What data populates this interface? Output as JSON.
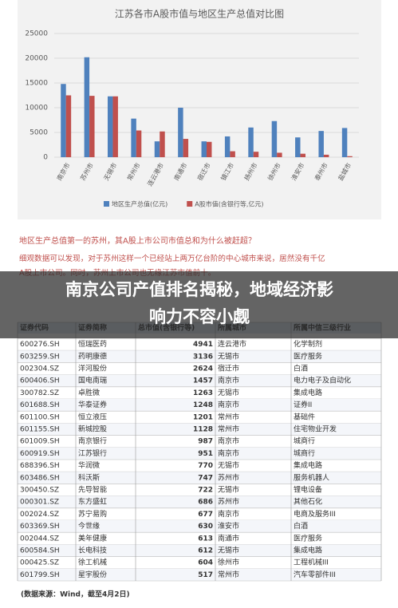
{
  "chart_data": {
    "type": "bar",
    "title": "江苏各市A股市值与地区生产总值对比图",
    "categories": [
      "南京市",
      "苏州市",
      "无锡市",
      "常州市",
      "连云港市",
      "南通市",
      "宿迁市",
      "镇江市",
      "扬州市",
      "徐州市",
      "淮安市",
      "泰州市",
      "盐城市"
    ],
    "series": [
      {
        "name": "地区生产总值(亿元)",
        "color": "#4f81bd",
        "values": [
          14800,
          20200,
          12300,
          7800,
          3200,
          10000,
          3200,
          4200,
          6000,
          7300,
          4000,
          5300,
          5900
        ]
      },
      {
        "name": "A股市值(含银行等,亿元)",
        "color": "#c0504d",
        "values": [
          12500,
          12400,
          12300,
          5400,
          5200,
          3700,
          3100,
          1200,
          1100,
          900,
          700,
          500,
          200
        ]
      }
    ],
    "ylim": [
      0,
      25000
    ],
    "yticks": [
      0,
      5000,
      10000,
      15000,
      20000,
      25000
    ],
    "grid": true,
    "legend": "bottom"
  },
  "article": {
    "heading": "地区生产总值第一的苏州，其A股上市公司市值总和为什么被赶超？",
    "paragraph_lines": [
      "细观数据可以发现，对于苏州这样一个已经站上两万亿台阶的中心城市来说，居然没有千亿",
      "A股上市公司。同时，苏州上市公司也无缘江苏市值前十。"
    ],
    "overlay_title_lines": [
      "南京公司产值排名揭秘，地域经济影",
      "响力不容小觑"
    ],
    "source": "(数据来源：Wind，截至4月2日)"
  },
  "table": {
    "header": [
      "证券代码",
      "证券简称",
      "总市值(含银行等)",
      "所属城市",
      "所属中信三级行业"
    ],
    "rows": [
      [
        "600276.SH",
        "恒瑞医药",
        "4941",
        "连云港市",
        "化学制剂"
      ],
      [
        "603259.SH",
        "药明康德",
        "3136",
        "无锡市",
        "医疗服务"
      ],
      [
        "002304.SZ",
        "洋河股份",
        "2624",
        "宿迁市",
        "白酒"
      ],
      [
        "600406.SH",
        "国电南瑞",
        "1457",
        "南京市",
        "电力电子及自动化"
      ],
      [
        "300782.SZ",
        "卓胜微",
        "1263",
        "无锡市",
        "集成电路"
      ],
      [
        "601688.SH",
        "华泰证券",
        "1248",
        "南京市",
        "证券II"
      ],
      [
        "601100.SH",
        "恒立液压",
        "1201",
        "常州市",
        "基础件"
      ],
      [
        "601155.SH",
        "新城控股",
        "1128",
        "常州市",
        "住宅物业开发"
      ],
      [
        "601009.SH",
        "南京银行",
        "987",
        "南京市",
        "城商行"
      ],
      [
        "600919.SH",
        "江苏银行",
        "951",
        "南京市",
        "城商行"
      ],
      [
        "688396.SH",
        "华润微",
        "770",
        "无锡市",
        "集成电路"
      ],
      [
        "603486.SH",
        "科沃斯",
        "747",
        "苏州市",
        "服务机器人"
      ],
      [
        "300450.SZ",
        "先导智能",
        "722",
        "无锡市",
        "锂电设备"
      ],
      [
        "000301.SZ",
        "东方盛虹",
        "686",
        "苏州市",
        "其他石化"
      ],
      [
        "002024.SZ",
        "苏宁易购",
        "677",
        "南京市",
        "电商及服务III"
      ],
      [
        "603369.SH",
        "今世缘",
        "630",
        "淮安市",
        "白酒"
      ],
      [
        "002044.SZ",
        "美年健康",
        "613",
        "南通市",
        "医疗服务"
      ],
      [
        "600584.SH",
        "长电科技",
        "612",
        "无锡市",
        "集成电路"
      ],
      [
        "000425.SZ",
        "徐工机械",
        "604",
        "徐州市",
        "工程机械III"
      ],
      [
        "601799.SH",
        "星宇股份",
        "517",
        "常州市",
        "汽车零部件III"
      ]
    ]
  }
}
